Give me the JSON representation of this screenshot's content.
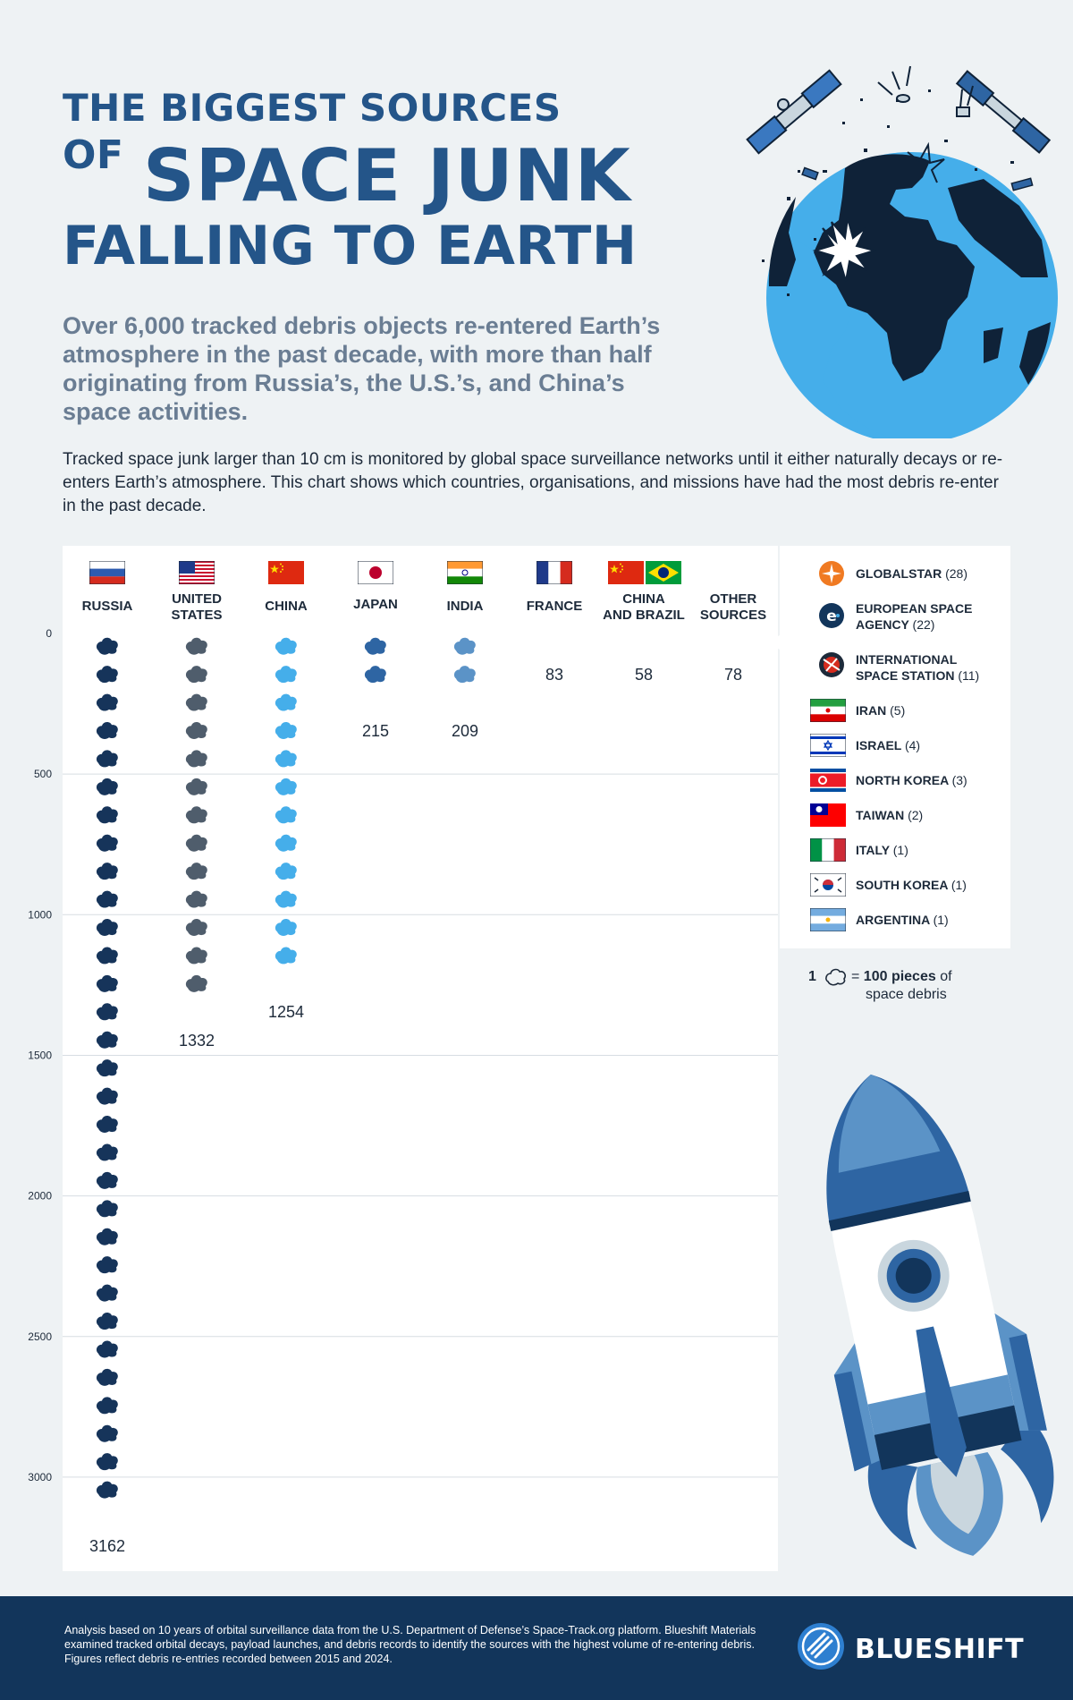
{
  "header": {
    "title_line1": "THE BIGGEST SOURCES",
    "title_of": "OF",
    "title_line2": "SPACE JUNK",
    "title_line3": "FALLING TO EARTH",
    "subtitle": "Over 6,000 tracked debris objects re-entered Earth’s atmosphere in the past decade, with more than half originating from Russia’s, the U.S.’s, and China’s space activities.",
    "intro": "Tracked space junk larger than 10 cm is monitored by global space surveillance networks until it either naturally decays or re-enters Earth’s atmosphere. This chart shows which countries, organisations, and missions have had the most debris re-enter in the past decade."
  },
  "chart_data": {
    "type": "bar",
    "title": "",
    "unit": "pieces of space debris",
    "y_ticks": [
      0,
      500,
      1000,
      1500,
      2000,
      2500,
      3000
    ],
    "ylim": [
      0,
      3162
    ],
    "grid": true,
    "categories": [
      "RUSSIA",
      "UNITED STATES",
      "CHINA",
      "JAPAN",
      "INDIA",
      "FRANCE",
      "CHINA AND BRAZIL",
      "OTHER SOURCES"
    ],
    "values": [
      3162,
      1332,
      1254,
      215,
      209,
      83,
      58,
      78
    ],
    "colors": [
      "#16345a",
      "#4f5d6c",
      "#45aeea",
      "#2e65a3",
      "#5b93c7",
      "#7f9bb5",
      "#c9d6de",
      "#1d2a3a"
    ],
    "flags": [
      "russia",
      "united-states",
      "china",
      "japan",
      "india",
      "france",
      "china,brazil",
      "none"
    ],
    "other_sources": [
      {
        "name": "GLOBALSTAR",
        "count": "(28)",
        "icon": "globalstar-logo"
      },
      {
        "name": "EUROPEAN SPACE AGENCY",
        "count": "(22)",
        "icon": "esa-logo"
      },
      {
        "name": "INTERNATIONAL SPACE STATION",
        "count": "(11)",
        "icon": "iss-patch"
      },
      {
        "name": "IRAN",
        "count": "(5)",
        "icon": "iran"
      },
      {
        "name": "ISRAEL",
        "count": "(4)",
        "icon": "israel"
      },
      {
        "name": "NORTH KOREA",
        "count": "(3)",
        "icon": "north-korea"
      },
      {
        "name": "TAIWAN",
        "count": "(2)",
        "icon": "taiwan"
      },
      {
        "name": "ITALY",
        "count": "(1)",
        "icon": "italy"
      },
      {
        "name": "SOUTH KOREA",
        "count": "(1)",
        "icon": "south-korea"
      },
      {
        "name": "ARGENTINA",
        "count": "(1)",
        "icon": "argentina"
      }
    ],
    "key": {
      "one": "1",
      "equals": "= ",
      "bold": "100 pieces",
      "after": " of",
      "line2": "space debris",
      "value": 100
    }
  },
  "legend_rows": [
    {
      "name": "GLOBALSTAR",
      "count": "(28)"
    },
    {
      "name": "EUROPEAN SPACE",
      "name2": "AGENCY",
      "count": "(22)"
    },
    {
      "name": "INTERNATIONAL",
      "name2": "SPACE STATION",
      "count": "(11)"
    },
    {
      "name": "IRAN",
      "count": "(5)"
    },
    {
      "name": "ISRAEL",
      "count": "(4)"
    },
    {
      "name": "NORTH KOREA",
      "count": "(3)"
    },
    {
      "name": "TAIWAN",
      "count": "(2)"
    },
    {
      "name": "ITALY",
      "count": "(1)"
    },
    {
      "name": "SOUTH KOREA",
      "count": "(1)"
    },
    {
      "name": "ARGENTINA",
      "count": "(1)"
    }
  ],
  "col_labels": [
    {
      "l1": "RUSSIA"
    },
    {
      "l1": "UNITED",
      "l2": "STATES"
    },
    {
      "l1": "CHINA"
    },
    {
      "l1": "JAPAN"
    },
    {
      "l1": "INDIA"
    },
    {
      "l1": "FRANCE"
    },
    {
      "l1": "CHINA",
      "l2": "AND BRAZIL"
    },
    {
      "l1": "OTHER",
      "l2": "SOURCES"
    }
  ],
  "footer": {
    "text": "Analysis based on 10 years of orbital surveillance data from the U.S. Department of Defense’s Space-Track.org platform. Blueshift Materials examined tracked orbital decays, payload launches, and debris records to identify the sources with the highest volume of re-entering debris. Figures reflect debris re-entries recorded between 2015 and 2024.",
    "brand": "BLUESHIFT"
  },
  "colors": {
    "title": "#245589",
    "subtitle": "#6a7d93",
    "footer": "#12355b",
    "background": "#eef2f4"
  }
}
